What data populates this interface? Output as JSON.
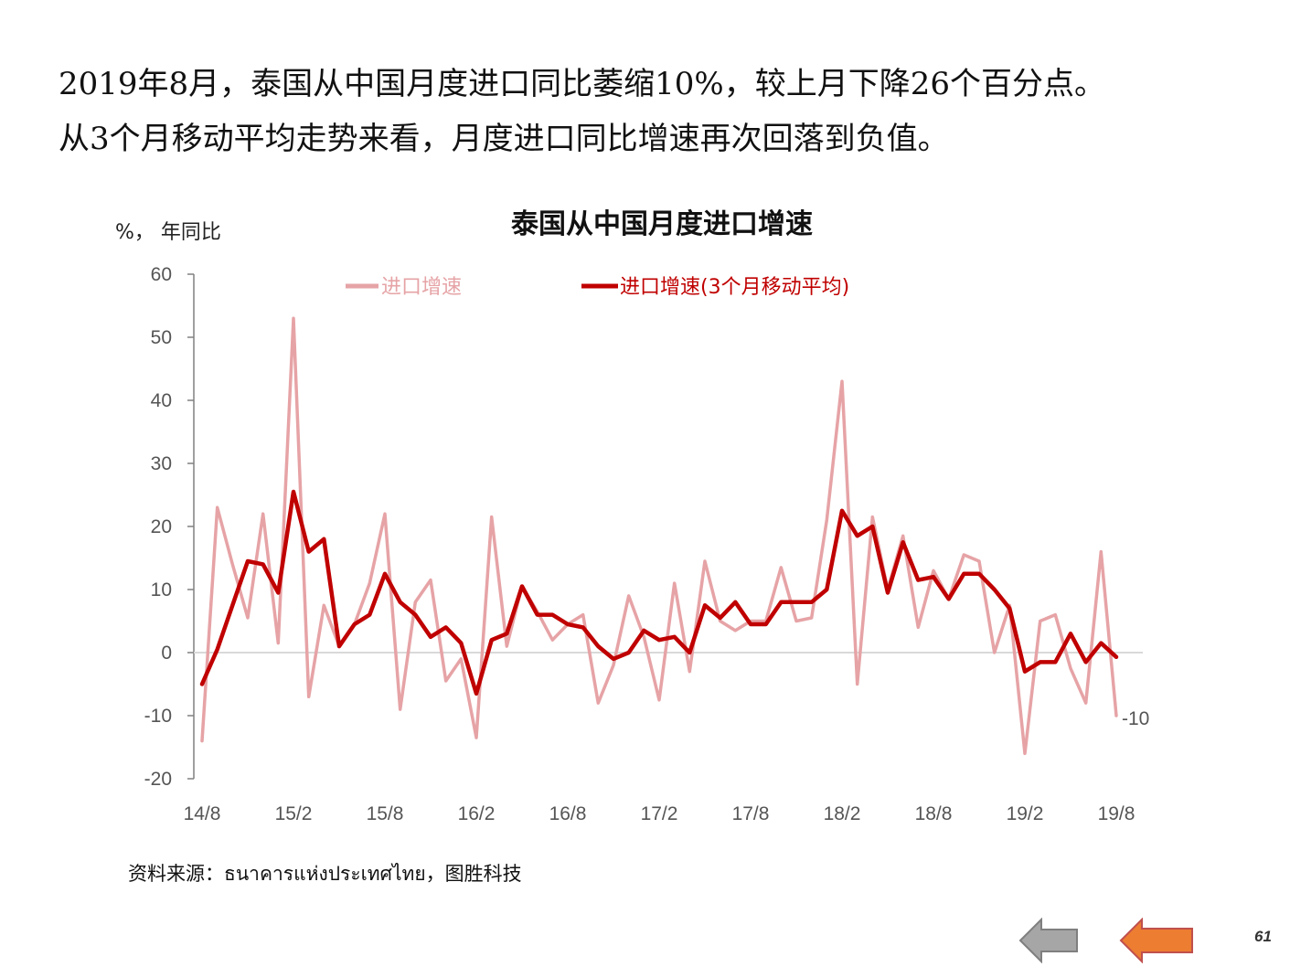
{
  "headline": {
    "line1": "2019年8月，泰国从中国月度进口同比萎缩10%，较上月下降26个百分点。",
    "line2": "从3个月移动平均走势来看，月度进口同比增速再次回落到负值。"
  },
  "source": "资料来源：ธนาคารแห่งประเทศไทย，图胜科技",
  "page_number": "61",
  "nav": {
    "prev": "back-arrow",
    "next": "forward-arrow"
  },
  "colors": {
    "series1": "#e6a3a6",
    "series2": "#c00000",
    "axis": "#808080",
    "arrow_prev": "#a6a6a6",
    "arrow_next": "#ed7d31"
  },
  "chart_data": {
    "type": "line",
    "title": "泰国从中国月度进口增速",
    "ylabel": "%， 年同比",
    "xlabel": "",
    "ylim": [
      -20,
      60
    ],
    "yticks": [
      60,
      50,
      40,
      30,
      20,
      10,
      0,
      -10,
      -20
    ],
    "y_tick_labels": [
      "60",
      "50",
      "40",
      "30",
      "20",
      "10",
      "0",
      "-10",
      "-20"
    ],
    "x_tick_labels": [
      "14/8",
      "15/2",
      "15/8",
      "16/2",
      "16/8",
      "17/2",
      "17/8",
      "18/2",
      "18/8",
      "19/2",
      "19/8"
    ],
    "grid": false,
    "legend_position": "top",
    "end_annotation": "-10",
    "series": [
      {
        "name": "进口增速",
        "color": "#e6a3a6",
        "values": [
          -14,
          23,
          14,
          5.5,
          22,
          1.5,
          53,
          -7,
          7.5,
          1,
          4.5,
          11,
          22,
          -9,
          8,
          11.5,
          -4.5,
          -1,
          -13.5,
          21.5,
          1,
          10.5,
          6.5,
          2,
          4.5,
          6,
          -8,
          -2,
          9,
          2.5,
          -7.5,
          11,
          -3,
          14.5,
          5,
          3.5,
          5,
          5,
          13.5,
          5,
          5.5,
          21,
          43,
          -5,
          21.5,
          10,
          18.5,
          4,
          13,
          8.5,
          15.5,
          14.5,
          0,
          7.5,
          -16,
          5,
          6,
          -2.5,
          -8,
          16,
          -10
        ]
      },
      {
        "name": "进口增速(3个月移动平均)",
        "color": "#c00000",
        "values": [
          -5,
          0.5,
          7.5,
          14.5,
          14,
          9.5,
          25.5,
          16,
          18,
          1,
          4.5,
          6,
          12.5,
          8,
          6,
          2.5,
          4,
          1.5,
          -6.5,
          2,
          3,
          10.5,
          6,
          6,
          4.5,
          4,
          1,
          -1,
          0,
          3.5,
          2,
          2.5,
          0,
          7.5,
          5.5,
          8,
          4.5,
          4.5,
          8,
          8,
          8,
          10,
          22.5,
          18.5,
          20,
          9.5,
          17.5,
          11.5,
          12,
          8.5,
          12.5,
          12.5,
          10,
          7,
          -3,
          -1.5,
          -1.5,
          3,
          -1.5,
          1.5,
          -0.7
        ]
      }
    ]
  }
}
